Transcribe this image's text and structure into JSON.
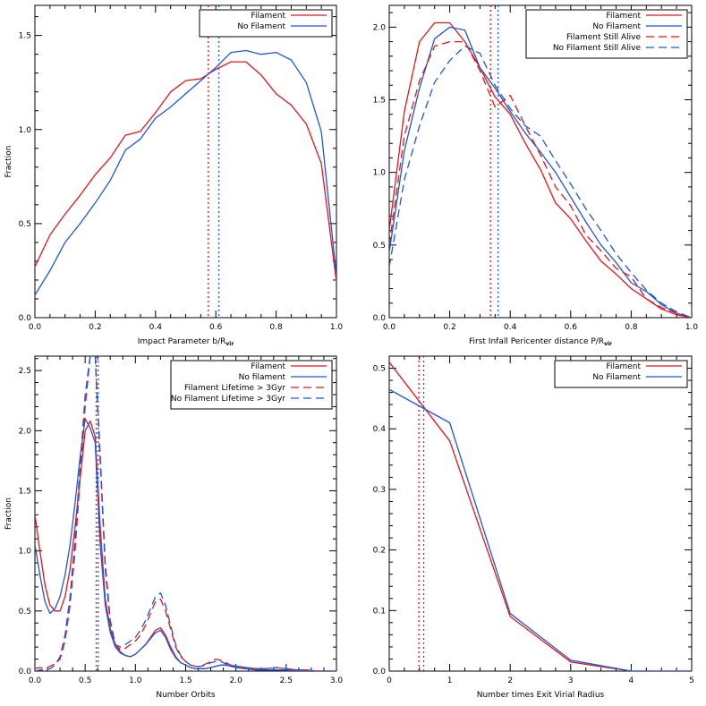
{
  "colors": {
    "filament": "#e8141b",
    "no_filament": "#1f57d6",
    "axis": "#000000"
  },
  "chart_data": [
    {
      "type": "line",
      "xlabel": "Impact Parameter b/R",
      "xlabel_sub": "vir",
      "ylabel": "Fraction",
      "xlim": [
        0.0,
        1.0
      ],
      "ylim": [
        0.0,
        1.66
      ],
      "xticks": [
        "0.0",
        "0.2",
        "0.4",
        "0.6",
        "0.8",
        "1.0"
      ],
      "xtick_values": [
        0.0,
        0.2,
        0.4,
        0.6,
        0.8,
        1.0
      ],
      "yticks": [
        "0.0",
        "0.5",
        "1.0",
        "1.5"
      ],
      "ytick_values": [
        0.0,
        0.5,
        1.0,
        1.5
      ],
      "legend": "top-right",
      "series": [
        {
          "name": "Filament",
          "color": "#e8141b",
          "style": "solid",
          "x": [
            0.0,
            0.05,
            0.1,
            0.15,
            0.2,
            0.25,
            0.3,
            0.35,
            0.4,
            0.45,
            0.5,
            0.55,
            0.6,
            0.65,
            0.7,
            0.75,
            0.8,
            0.85,
            0.9,
            0.95,
            1.0
          ],
          "y": [
            0.27,
            0.44,
            0.55,
            0.65,
            0.76,
            0.85,
            0.97,
            0.99,
            1.09,
            1.2,
            1.26,
            1.27,
            1.32,
            1.36,
            1.36,
            1.29,
            1.19,
            1.13,
            1.03,
            0.82,
            0.19
          ]
        },
        {
          "name": "No Filament",
          "color": "#1f57d6",
          "style": "solid",
          "x": [
            0.0,
            0.05,
            0.1,
            0.15,
            0.2,
            0.25,
            0.3,
            0.35,
            0.4,
            0.45,
            0.5,
            0.55,
            0.6,
            0.65,
            0.7,
            0.75,
            0.8,
            0.85,
            0.9,
            0.95,
            1.0
          ],
          "y": [
            0.12,
            0.25,
            0.4,
            0.5,
            0.61,
            0.73,
            0.89,
            0.95,
            1.06,
            1.12,
            1.19,
            1.26,
            1.33,
            1.41,
            1.42,
            1.4,
            1.41,
            1.37,
            1.25,
            0.99,
            0.22
          ]
        }
      ],
      "vlines": [
        {
          "x": 0.575,
          "color": "#e8141b",
          "style": "dotted"
        },
        {
          "x": 0.61,
          "color": "#1f57d6",
          "style": "dotted"
        }
      ]
    },
    {
      "type": "line",
      "xlabel": "First Infall Pericenter distance P/R",
      "xlabel_sub": "vir",
      "ylabel": "",
      "xlim": [
        0.0,
        1.0
      ],
      "ylim": [
        0.0,
        2.15
      ],
      "xticks": [
        "0.0",
        "0.2",
        "0.4",
        "0.6",
        "0.8",
        "1.0"
      ],
      "xtick_values": [
        0.0,
        0.2,
        0.4,
        0.6,
        0.8,
        1.0
      ],
      "yticks": [
        "0.0",
        "0.5",
        "1.0",
        "1.5",
        "2.0"
      ],
      "ytick_values": [
        0.0,
        0.5,
        1.0,
        1.5,
        2.0
      ],
      "legend": "top-right",
      "series": [
        {
          "name": "Filament",
          "color": "#e8141b",
          "style": "solid",
          "x": [
            0.0,
            0.05,
            0.1,
            0.15,
            0.2,
            0.25,
            0.3,
            0.35,
            0.4,
            0.45,
            0.5,
            0.55,
            0.6,
            0.65,
            0.7,
            0.75,
            0.8,
            0.85,
            0.9,
            0.95,
            1.0
          ],
          "y": [
            0.6,
            1.42,
            1.9,
            2.03,
            2.03,
            1.9,
            1.72,
            1.52,
            1.4,
            1.2,
            1.02,
            0.79,
            0.68,
            0.53,
            0.39,
            0.3,
            0.2,
            0.13,
            0.06,
            0.02,
            0.0
          ]
        },
        {
          "name": "No Filament",
          "color": "#1f57d6",
          "style": "solid",
          "x": [
            0.0,
            0.05,
            0.1,
            0.15,
            0.2,
            0.25,
            0.3,
            0.35,
            0.4,
            0.45,
            0.5,
            0.55,
            0.6,
            0.65,
            0.7,
            0.75,
            0.8,
            0.85,
            0.9,
            0.95,
            1.0
          ],
          "y": [
            0.45,
            1.15,
            1.58,
            1.92,
            2.0,
            1.98,
            1.72,
            1.58,
            1.42,
            1.27,
            1.14,
            1.0,
            0.83,
            0.66,
            0.5,
            0.38,
            0.24,
            0.18,
            0.09,
            0.03,
            0.0
          ]
        },
        {
          "name": "Filament Still Alive",
          "color": "#e8141b",
          "style": "dashed",
          "x": [
            0.0,
            0.05,
            0.1,
            0.15,
            0.2,
            0.25,
            0.3,
            0.35,
            0.4,
            0.45,
            0.5,
            0.55,
            0.6,
            0.65,
            0.7,
            0.75,
            0.8,
            0.85,
            0.9,
            0.95,
            1.0
          ],
          "y": [
            0.5,
            1.25,
            1.63,
            1.87,
            1.9,
            1.9,
            1.7,
            1.45,
            1.53,
            1.32,
            1.12,
            0.9,
            0.77,
            0.57,
            0.46,
            0.34,
            0.28,
            0.13,
            0.07,
            0.03,
            0.0
          ]
        },
        {
          "name": "No Filament Still Alive",
          "color": "#1f57d6",
          "style": "dashed",
          "x": [
            0.0,
            0.05,
            0.1,
            0.15,
            0.2,
            0.25,
            0.3,
            0.35,
            0.4,
            0.45,
            0.5,
            0.55,
            0.6,
            0.65,
            0.7,
            0.75,
            0.8,
            0.85,
            0.9,
            0.95,
            1.0
          ],
          "y": [
            0.35,
            0.95,
            1.32,
            1.62,
            1.77,
            1.87,
            1.82,
            1.6,
            1.44,
            1.32,
            1.25,
            1.08,
            0.92,
            0.75,
            0.6,
            0.44,
            0.31,
            0.19,
            0.1,
            0.04,
            0.0
          ]
        }
      ],
      "vlines": [
        {
          "x": 0.335,
          "color": "#e8141b",
          "style": "dotted"
        },
        {
          "x": 0.36,
          "color": "#1f57d6",
          "style": "dotted"
        }
      ]
    },
    {
      "type": "line",
      "xlabel": "Number Orbits",
      "xlabel_sub": "",
      "ylabel": "Fraction",
      "xlim": [
        0.0,
        3.0
      ],
      "ylim": [
        0.0,
        2.62
      ],
      "xticks": [
        "0.0",
        "0.5",
        "1.0",
        "1.5",
        "2.0",
        "2.5",
        "3.0"
      ],
      "xtick_values": [
        0.0,
        0.5,
        1.0,
        1.5,
        2.0,
        2.5,
        3.0
      ],
      "yticks": [
        "0.0",
        "0.5",
        "1.0",
        "1.5",
        "2.0",
        "2.5"
      ],
      "ytick_values": [
        0.0,
        0.5,
        1.0,
        1.5,
        2.0,
        2.5
      ],
      "legend": "top-right",
      "series": [
        {
          "name": "Filament",
          "color": "#e8141b",
          "style": "solid",
          "x": [
            0.0,
            0.05,
            0.1,
            0.15,
            0.2,
            0.25,
            0.3,
            0.35,
            0.4,
            0.45,
            0.5,
            0.55,
            0.6,
            0.65,
            0.7,
            0.75,
            0.8,
            0.85,
            0.9,
            0.95,
            1.0,
            1.05,
            1.1,
            1.15,
            1.2,
            1.25,
            1.3,
            1.35,
            1.4,
            1.45,
            1.5,
            1.55,
            1.6,
            1.65,
            1.7,
            1.75,
            1.8,
            1.85,
            1.9,
            1.95,
            2.0,
            2.1,
            2.2,
            2.3,
            2.4,
            2.5,
            2.6,
            2.7,
            2.8,
            2.9,
            3.0
          ],
          "y": [
            1.3,
            1.0,
            0.72,
            0.55,
            0.5,
            0.5,
            0.62,
            0.85,
            1.2,
            1.6,
            2.0,
            2.08,
            1.95,
            1.2,
            0.6,
            0.35,
            0.22,
            0.16,
            0.13,
            0.12,
            0.14,
            0.18,
            0.22,
            0.28,
            0.34,
            0.36,
            0.3,
            0.2,
            0.12,
            0.07,
            0.05,
            0.03,
            0.02,
            0.02,
            0.02,
            0.03,
            0.04,
            0.05,
            0.05,
            0.04,
            0.03,
            0.02,
            0.01,
            0.01,
            0.01,
            0.01,
            0.0,
            0.0,
            0.0,
            0.0,
            0.0
          ]
        },
        {
          "name": "No filament",
          "color": "#1f57d6",
          "style": "solid",
          "x": [
            0.0,
            0.05,
            0.1,
            0.15,
            0.2,
            0.25,
            0.3,
            0.35,
            0.4,
            0.45,
            0.5,
            0.55,
            0.6,
            0.65,
            0.7,
            0.75,
            0.8,
            0.85,
            0.9,
            0.95,
            1.0,
            1.05,
            1.1,
            1.15,
            1.2,
            1.25,
            1.3,
            1.35,
            1.4,
            1.45,
            1.5,
            1.55,
            1.6,
            1.65,
            1.7,
            1.75,
            1.8,
            1.85,
            1.9,
            1.95,
            2.0,
            2.1,
            2.2,
            2.3,
            2.4,
            2.5,
            2.6,
            2.7,
            2.8,
            2.9,
            3.0
          ],
          "y": [
            1.05,
            0.8,
            0.58,
            0.48,
            0.52,
            0.62,
            0.8,
            1.05,
            1.4,
            1.78,
            2.1,
            2.02,
            1.9,
            1.05,
            0.55,
            0.32,
            0.2,
            0.15,
            0.13,
            0.12,
            0.14,
            0.18,
            0.22,
            0.27,
            0.32,
            0.34,
            0.28,
            0.18,
            0.11,
            0.07,
            0.05,
            0.03,
            0.02,
            0.02,
            0.02,
            0.03,
            0.04,
            0.05,
            0.05,
            0.04,
            0.03,
            0.02,
            0.01,
            0.01,
            0.01,
            0.01,
            0.0,
            0.0,
            0.0,
            0.0,
            0.0
          ]
        },
        {
          "name": "Filament Lifetime > 3Gyr",
          "color": "#e8141b",
          "style": "dashed",
          "x": [
            0.0,
            0.05,
            0.1,
            0.15,
            0.2,
            0.25,
            0.3,
            0.35,
            0.4,
            0.45,
            0.5,
            0.55,
            0.6,
            0.65,
            0.7,
            0.75,
            0.8,
            0.85,
            0.9,
            0.95,
            1.0,
            1.05,
            1.1,
            1.15,
            1.2,
            1.25,
            1.3,
            1.35,
            1.4,
            1.45,
            1.5,
            1.55,
            1.6,
            1.65,
            1.7,
            1.75,
            1.8,
            1.85,
            1.9,
            1.95,
            2.0,
            2.1,
            2.2,
            2.3,
            2.4,
            2.5,
            2.6,
            2.7,
            2.8,
            2.9,
            3.0
          ],
          "y": [
            0.02,
            0.03,
            0.02,
            0.04,
            0.06,
            0.1,
            0.25,
            0.55,
            1.0,
            1.6,
            2.2,
            2.62,
            2.62,
            1.8,
            0.9,
            0.42,
            0.22,
            0.18,
            0.19,
            0.22,
            0.25,
            0.3,
            0.38,
            0.48,
            0.58,
            0.6,
            0.5,
            0.35,
            0.2,
            0.12,
            0.08,
            0.05,
            0.04,
            0.04,
            0.06,
            0.08,
            0.1,
            0.09,
            0.07,
            0.05,
            0.04,
            0.03,
            0.02,
            0.02,
            0.03,
            0.02,
            0.01,
            0.01,
            0.0,
            0.0,
            0.0
          ]
        },
        {
          "name": "No Filament Lifetime > 3Gyr",
          "color": "#1f57d6",
          "style": "dashed",
          "x": [
            0.0,
            0.05,
            0.1,
            0.15,
            0.2,
            0.25,
            0.3,
            0.35,
            0.4,
            0.45,
            0.5,
            0.55,
            0.6,
            0.65,
            0.7,
            0.75,
            0.8,
            0.85,
            0.9,
            0.95,
            1.0,
            1.05,
            1.1,
            1.15,
            1.2,
            1.25,
            1.3,
            1.35,
            1.4,
            1.45,
            1.5,
            1.55,
            1.6,
            1.65,
            1.7,
            1.75,
            1.8,
            1.85,
            1.9,
            1.95,
            2.0,
            2.1,
            2.2,
            2.3,
            2.4,
            2.5,
            2.6,
            2.7,
            2.8,
            2.9,
            3.0
          ],
          "y": [
            0.0,
            0.01,
            0.01,
            0.02,
            0.05,
            0.12,
            0.3,
            0.62,
            1.1,
            1.7,
            2.3,
            2.62,
            2.62,
            1.75,
            0.85,
            0.4,
            0.22,
            0.2,
            0.22,
            0.25,
            0.28,
            0.34,
            0.42,
            0.52,
            0.62,
            0.65,
            0.55,
            0.38,
            0.22,
            0.13,
            0.08,
            0.05,
            0.04,
            0.04,
            0.05,
            0.07,
            0.08,
            0.08,
            0.06,
            0.05,
            0.04,
            0.03,
            0.02,
            0.02,
            0.03,
            0.02,
            0.01,
            0.01,
            0.0,
            0.0,
            0.0
          ]
        }
      ],
      "vlines": [
        {
          "x": 0.61,
          "color": "#e8141b",
          "style": "dotted"
        },
        {
          "x": 0.63,
          "color": "#1f57d6",
          "style": "dotted"
        }
      ]
    },
    {
      "type": "line",
      "xlabel": "Number times Exit Virial Radius",
      "xlabel_sub": "",
      "ylabel": "",
      "xlim": [
        0,
        5
      ],
      "ylim": [
        0.0,
        0.52
      ],
      "xticks": [
        "0",
        "1",
        "2",
        "3",
        "4",
        "5"
      ],
      "xtick_values": [
        0,
        1,
        2,
        3,
        4,
        5
      ],
      "yticks": [
        "0.0",
        "0.1",
        "0.2",
        "0.3",
        "0.4",
        "0.5"
      ],
      "ytick_values": [
        0.0,
        0.1,
        0.2,
        0.3,
        0.4,
        0.5
      ],
      "legend": "top-right",
      "series": [
        {
          "name": "Filament",
          "color": "#e8141b",
          "style": "solid",
          "x": [
            0,
            1,
            2,
            3,
            4,
            5
          ],
          "y": [
            0.51,
            0.38,
            0.09,
            0.015,
            0.0,
            0.0
          ]
        },
        {
          "name": "No Filament",
          "color": "#1f57d6",
          "style": "solid",
          "x": [
            0,
            1,
            2,
            3,
            4,
            5
          ],
          "y": [
            0.465,
            0.41,
            0.095,
            0.018,
            0.0,
            0.0
          ]
        }
      ],
      "vlines": [
        {
          "x": 0.49,
          "color": "#e8141b",
          "style": "dotted"
        },
        {
          "x": 0.57,
          "color": "#1f57d6",
          "style": "dotted"
        }
      ]
    }
  ]
}
